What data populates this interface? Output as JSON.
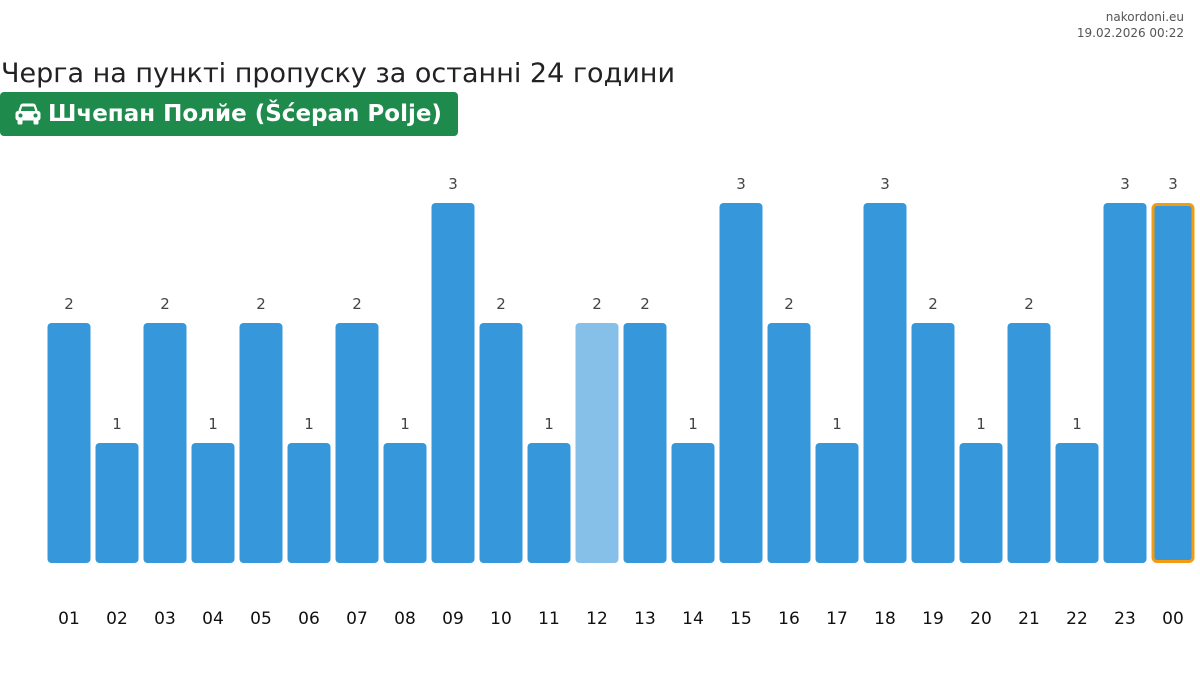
{
  "source": {
    "site": "nakordoni.eu",
    "timestamp": "19.02.2026 00:22"
  },
  "header": {
    "title": "Черга на пункті пропуску за останні 24 години",
    "checkpoint": "Шчепан Полйе (Šćepan Polje)",
    "checkpoint_icon": "car-icon"
  },
  "colors": {
    "bar": "#3797db",
    "bar_highlight": "#86bfe8",
    "current_outline": "#f39c12",
    "badge": "#1e8a4c"
  },
  "chart_data": {
    "type": "bar",
    "categories": [
      "01",
      "02",
      "03",
      "04",
      "05",
      "06",
      "07",
      "08",
      "09",
      "10",
      "11",
      "12",
      "13",
      "14",
      "15",
      "16",
      "17",
      "18",
      "19",
      "20",
      "21",
      "22",
      "23",
      "00"
    ],
    "values": [
      2,
      1,
      2,
      1,
      2,
      1,
      2,
      1,
      3,
      2,
      1,
      2,
      2,
      1,
      3,
      2,
      1,
      3,
      2,
      1,
      2,
      1,
      3,
      3
    ],
    "highlighted_category": "12",
    "current_category": "00",
    "data_labels": true,
    "ylim": [
      0,
      3
    ],
    "grid": false,
    "title": "",
    "xlabel": "",
    "ylabel": ""
  }
}
